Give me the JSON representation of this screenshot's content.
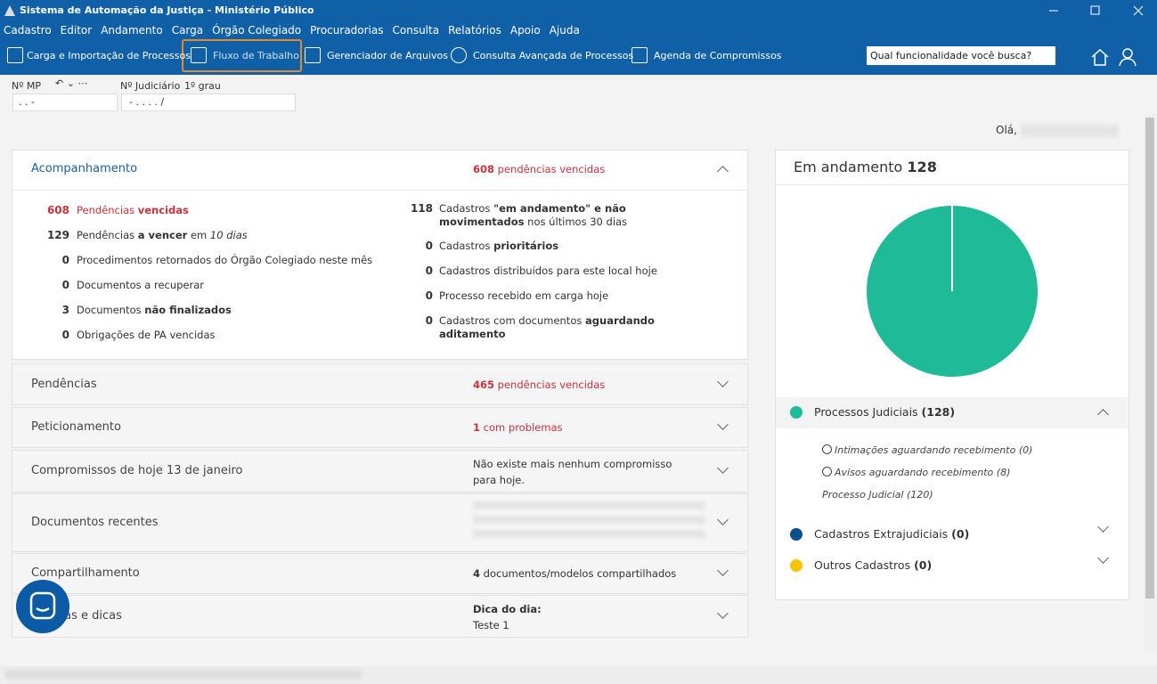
{
  "window": {
    "title": "Sistema de Automação da Justiça - Ministério Público"
  },
  "menu": [
    "Cadastro",
    "Editor",
    "Andamento",
    "Carga",
    "Órgão Colegiado",
    "Procuradorias",
    "Consulta",
    "Relatórios",
    "Apoio",
    "Ajuda"
  ],
  "toolbar": {
    "items": [
      "Carga e Importação de Processos",
      "Fluxo de Trabalho",
      "Gerenciador de Arquivos",
      "Consulta Avançada de Processos",
      "Agenda de Compromissos"
    ],
    "search_placeholder": "Qual funcionalidade você busca?"
  },
  "fields": {
    "mp_label": "Nº MP",
    "mp_value": ". . -",
    "judicial_label": "Nº Judiciário",
    "instance": "1º grau",
    "judicial_value": "- . . . . /"
  },
  "greeting": "Olá,",
  "sections": [
    {
      "title": "Acompanhamento",
      "summary_count": 608,
      "summary_text": "pendências vencidas",
      "left": [
        {
          "count": 608,
          "parts": [
            {
              "text": "Pendências "
            },
            {
              "text": "vencidas",
              "style": "bold"
            }
          ],
          "alert": true
        },
        {
          "count": 129,
          "parts": [
            {
              "text": "Pendências "
            },
            {
              "text": "a vencer",
              "style": "bold"
            },
            {
              "text": " em "
            },
            {
              "text": "10 dias",
              "style": "italic"
            }
          ]
        },
        {
          "count": 0,
          "parts": [
            {
              "text": "Procedimentos retornados do Órgão Colegiado neste mês"
            }
          ]
        },
        {
          "count": 0,
          "parts": [
            {
              "text": "Documentos a recuperar"
            }
          ]
        },
        {
          "count": 3,
          "parts": [
            {
              "text": "Documentos "
            },
            {
              "text": "não finalizados",
              "style": "bold"
            }
          ]
        },
        {
          "count": 0,
          "parts": [
            {
              "text": "Obrigações de PA vencidas"
            }
          ]
        }
      ],
      "right": [
        {
          "count": 118,
          "parts": [
            {
              "text": "Cadastros "
            },
            {
              "text": "\"em andamento\" e não movimentados",
              "style": "bold"
            },
            {
              "text": " nos últimos 30 dias"
            }
          ]
        },
        {
          "count": 0,
          "parts": [
            {
              "text": "Cadastros "
            },
            {
              "text": "prioritários",
              "style": "bold"
            }
          ]
        },
        {
          "count": 0,
          "parts": [
            {
              "text": "Cadastros distribuídos para este local hoje"
            }
          ]
        },
        {
          "count": 0,
          "parts": [
            {
              "text": "Processo recebido em carga hoje"
            }
          ]
        },
        {
          "count": 0,
          "parts": [
            {
              "text": "Cadastros com documentos "
            },
            {
              "text": "aguardando aditamento",
              "style": "bold"
            }
          ]
        }
      ]
    },
    {
      "title": "Pendências",
      "summary_count": 465,
      "summary_text": "pendências vencidas"
    },
    {
      "title": "Peticionamento",
      "summary_count": 1,
      "summary_text": "com problemas"
    },
    {
      "title": "Compromissos de hoje 13 de janeiro",
      "summary_text": "Não existe mais nenhum compromisso para hoje."
    },
    {
      "title": "Documentos recentes"
    },
    {
      "title": "Compartilhamento",
      "summary_count": 4,
      "summary_text": "documentos/modelos compartilhados"
    },
    {
      "title": "Notícias e dicas",
      "summary_heading": "Dica do dia:",
      "summary_text": "Teste 1"
    }
  ],
  "status_panel": {
    "title": "Em andamento",
    "total": 128,
    "legend": [
      {
        "name": "Processos Judiciais",
        "count": 128,
        "color": "#1fbb98",
        "details": [
          "Intimações aguardando recebimento (0)",
          "Avisos aguardando recebimento (8)",
          "Processo Judicial (120)"
        ]
      },
      {
        "name": "Cadastros Extrajudiciais",
        "count": 0,
        "color": "#0d4f8f"
      },
      {
        "name": "Outros Cadastros",
        "count": 0,
        "color": "#f5c400"
      }
    ]
  }
}
